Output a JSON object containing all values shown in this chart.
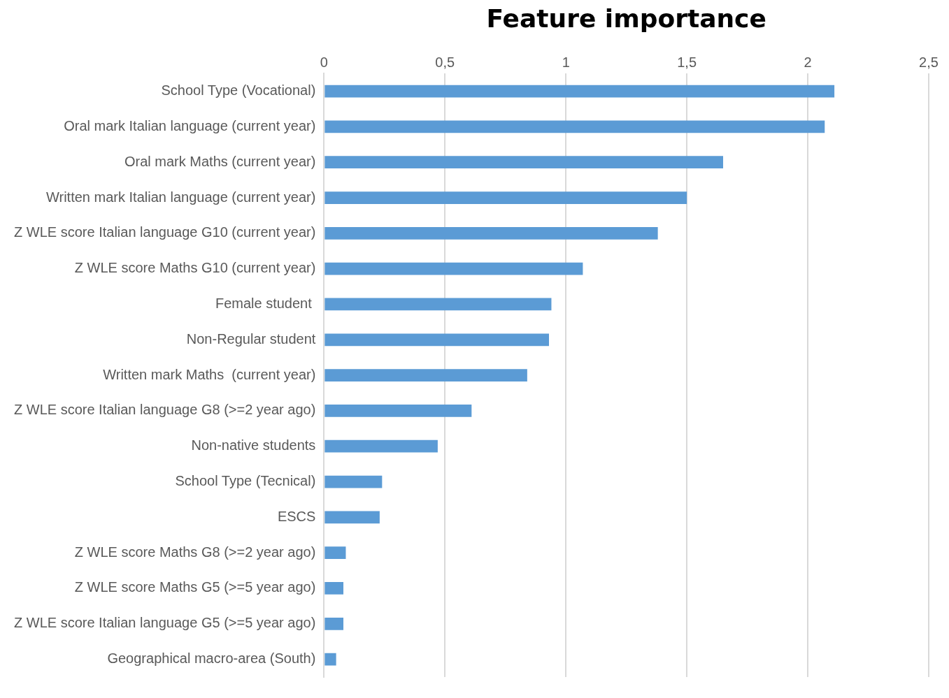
{
  "chart_data": {
    "type": "bar",
    "orientation": "horizontal",
    "title": "Feature importance",
    "categories": [
      "School Type (Vocational)",
      "Oral mark Italian language (current year)",
      "Oral mark Maths (current year)",
      "Written mark Italian language (current year)",
      "Z WLE score Italian language G10 (current year)",
      "Z WLE score Maths G10 (current year)",
      "Female student ",
      "Non-Regular student",
      "Written mark Maths  (current year)",
      "Z WLE score Italian language G8 (>=2 year ago)",
      "Non-native students",
      "School Type (Tecnical)",
      "ESCS",
      "Z WLE score Maths G8 (>=2 year ago)",
      "Z WLE score Maths G5 (>=5 year ago)",
      "Z WLE score Italian language G5 (>=5 year ago)",
      "Geographical macro-area (South)"
    ],
    "values": [
      2.11,
      2.07,
      1.65,
      1.5,
      1.38,
      1.07,
      0.94,
      0.93,
      0.84,
      0.61,
      0.47,
      0.24,
      0.23,
      0.09,
      0.08,
      0.08,
      0.05
    ],
    "color": "#5b9bd5",
    "xlim": [
      0,
      2.5
    ],
    "xticks": [
      0,
      {
        "value": 0.5,
        "label": "0,5"
      },
      1,
      {
        "value": 1.5,
        "label": "1,5"
      },
      2,
      {
        "value": 2.5,
        "label": "2,5"
      }
    ],
    "grid": "x",
    "legend": false
  }
}
